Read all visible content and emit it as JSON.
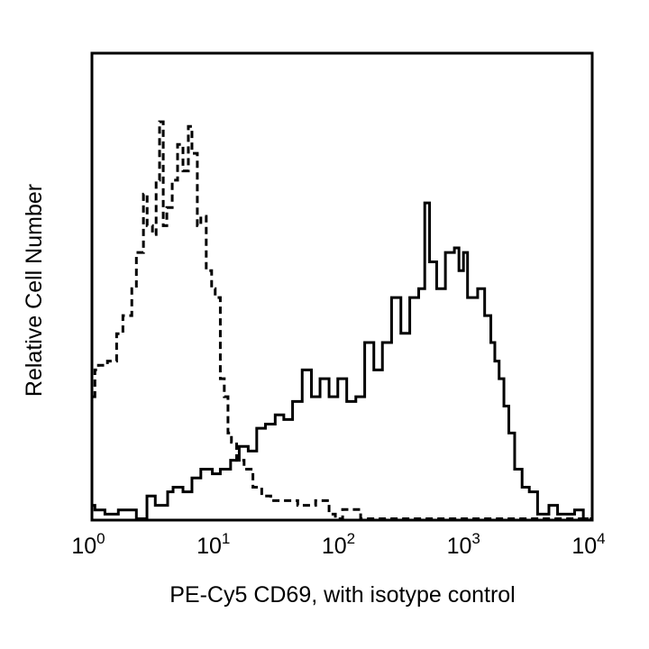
{
  "chart_data": {
    "type": "line",
    "title": "",
    "xlabel": "PE-Cy5 CD69, with isotype control",
    "ylabel": "Relative Cell Number",
    "xscale": "log",
    "xlim": [
      1,
      10000
    ],
    "ylim": [
      0,
      100
    ],
    "grid": false,
    "legend": "none",
    "x_ticks": [
      {
        "base": "10",
        "exp": "0"
      },
      {
        "base": "10",
        "exp": "1"
      },
      {
        "base": "10",
        "exp": "2"
      },
      {
        "base": "10",
        "exp": "3"
      },
      {
        "base": "10",
        "exp": "4"
      }
    ],
    "series": [
      {
        "style": "dashed",
        "color": "#000000",
        "x": [
          1.03,
          1.1,
          1.3,
          1.54,
          1.73,
          2.04,
          2.22,
          2.53,
          2.71,
          2.99,
          3.2,
          3.41,
          3.65,
          3.9,
          4.31,
          4.76,
          5.26,
          5.81,
          6.21,
          6.86,
          7.32,
          8.09,
          8.94,
          9.55,
          10.5,
          11.3,
          12.1,
          12.9,
          14.2,
          16.3,
          19.2,
          22.6,
          26.7,
          31.6,
          44.0,
          61.3,
          78.6,
          88.3,
          101,
          141,
          196,
          10000
        ],
        "y": [
          26.3,
          32.1,
          33.1,
          34.0,
          39.9,
          43.8,
          49.6,
          57.4,
          70.0,
          63.2,
          61.3,
          73.0,
          85.6,
          63.2,
          67.1,
          73.0,
          80.7,
          75.0,
          84.6,
          78.8,
          63.2,
          65.2,
          53.5,
          49.6,
          47.7,
          30.2,
          26.3,
          18.5,
          16.5,
          12.6,
          10.7,
          6.8,
          4.9,
          3.9,
          3.9,
          2.9,
          3.9,
          1.0,
          0,
          2.0,
          0,
          0
        ]
      },
      {
        "style": "solid",
        "color": "#000000",
        "x": [
          1.03,
          1.24,
          1.59,
          2.22,
          2.7,
          3.15,
          3.96,
          4.38,
          5.26,
          6.21,
          7.32,
          9.06,
          10.5,
          12.7,
          14.9,
          17.6,
          20.6,
          24.2,
          29.0,
          34.0,
          40.0,
          47.8,
          56.7,
          66.5,
          78.6,
          92.4,
          109,
          129,
          152,
          180,
          211,
          250,
          297,
          350,
          413,
          462,
          505,
          576,
          677,
          800,
          870,
          946,
          1020,
          1230,
          1400,
          1570,
          1690,
          1830,
          2000,
          2190,
          2440,
          2800,
          3200,
          3730,
          4600,
          5400,
          7400,
          8700,
          9600
        ],
        "y": [
          2.9,
          1.9,
          1.0,
          1.9,
          0,
          4.9,
          2.9,
          5.8,
          6.8,
          5.8,
          8.8,
          10.7,
          9.7,
          10.7,
          12.6,
          15.6,
          14.6,
          19.5,
          20.4,
          22.4,
          21.4,
          25.3,
          32.1,
          26.3,
          30.2,
          26.3,
          30.2,
          25.3,
          26.3,
          38.0,
          32.1,
          38.0,
          47.7,
          40.0,
          47.7,
          49.6,
          68.1,
          55.4,
          49.6,
          57.4,
          58.4,
          53.5,
          57.4,
          47.7,
          49.6,
          43.8,
          38.0,
          34.0,
          30.2,
          24.3,
          18.5,
          10.7,
          6.8,
          5.8,
          1.0,
          2.9,
          1.0,
          1.9,
          0
        ]
      }
    ]
  }
}
